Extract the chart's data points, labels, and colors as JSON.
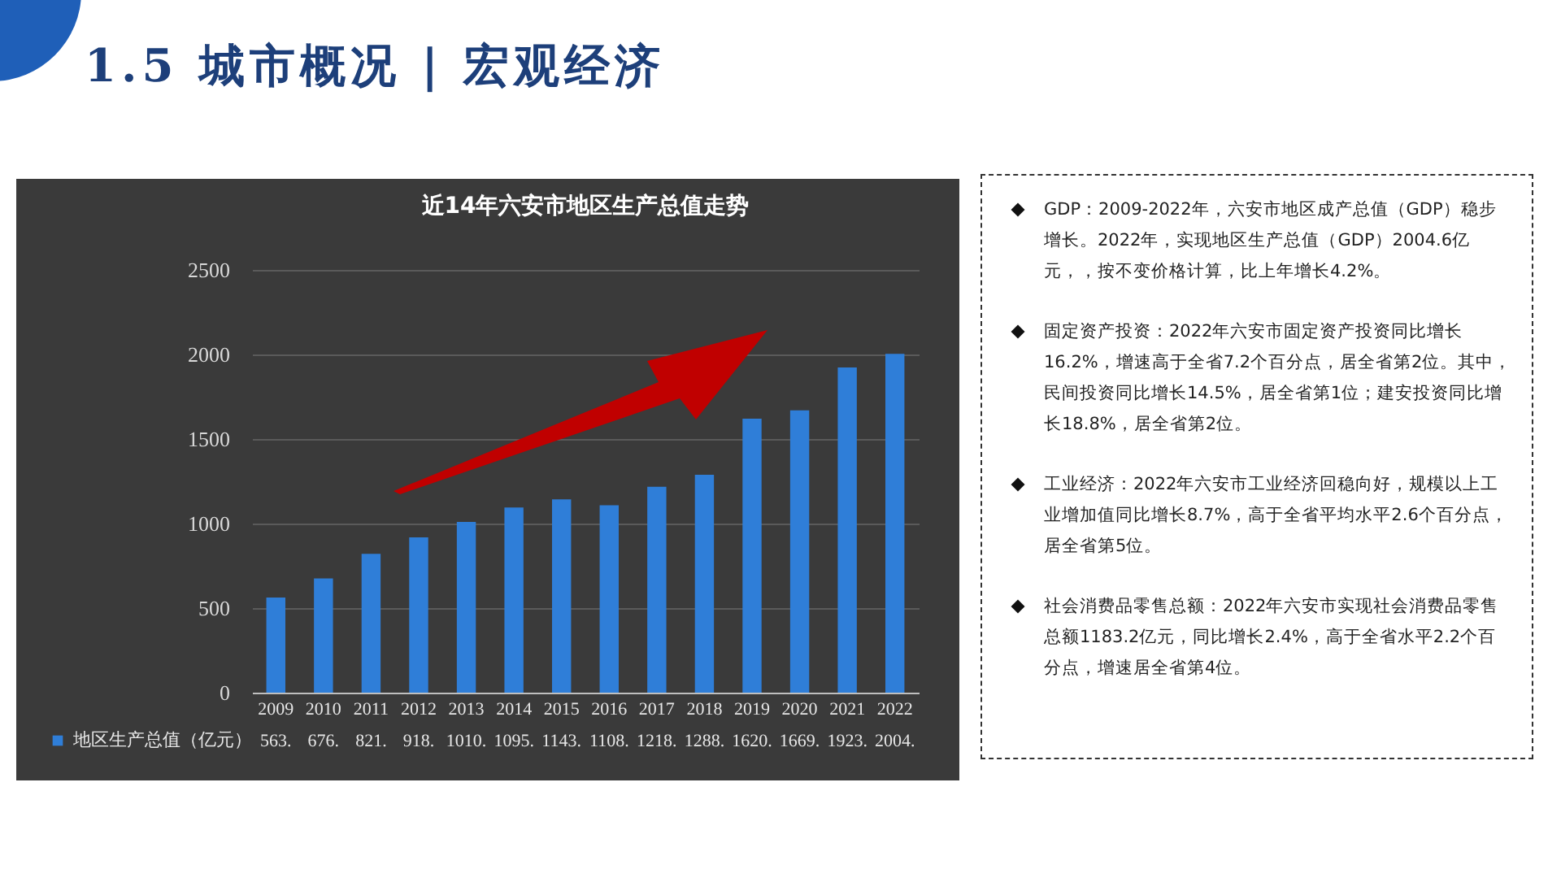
{
  "chart_data": {
    "type": "bar",
    "title": "近14年六安市地区生产总值走势",
    "categories": [
      "2009",
      "2010",
      "2011",
      "2012",
      "2013",
      "2014",
      "2015",
      "2016",
      "2017",
      "2018",
      "2019",
      "2020",
      "2021",
      "2022"
    ],
    "series": [
      {
        "name": "地区生产总值（亿元）",
        "color": "#2f7ed8",
        "values": [
          563,
          676,
          821,
          918,
          1010,
          1095,
          1143,
          1108,
          1218,
          1288,
          1620,
          1669,
          1923,
          2004
        ],
        "value_labels": [
          "563.",
          "676.",
          "821.",
          "918.",
          "1010.",
          "1095.",
          "1143.",
          "1108.",
          "1218.",
          "1288.",
          "1620.",
          "1669.",
          "1923.",
          "2004."
        ]
      }
    ],
    "ylim": [
      0,
      2500
    ],
    "yticks": [
      0,
      500,
      1000,
      1500,
      2000,
      2500
    ],
    "grid": "y",
    "legend": "bottom left",
    "annotations": [
      "1.5 城市概况 | 宏观经济",
      "GDP：2009-2022年，六安市地区成产总值（GDP）稳步增长。2022年，实现地区生产总值（GDP）2004.6亿元，，按不变价格计算，比上年增长4.2%。",
      "固定资产投资：2022年六安市固定资产投资同比增长16.2%，增速高于全省7.2个百分点，居全省第2位。其中，民间投资同比增长14.5%，居全省第1位；建安投资同比增长18.8%，居全省第2位。",
      "工业经济：2022年六安市工业经济回稳向好，规模以上工业增加值同比增长8.7%，高于全省平均水平2.6个百分点，居全省第5位。",
      "社会消费品零售总额：2022年六安市实现社会消费品零售总额1183.2亿元，同比增长2.4%，高于全省水平2.2个百分点，增速居全省第4位。"
    ]
  }
}
